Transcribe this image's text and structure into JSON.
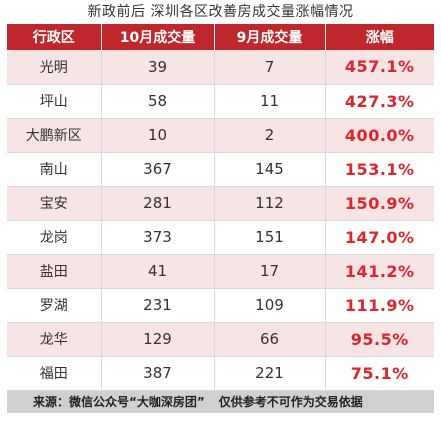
{
  "title": "新政前后 深圳各区改善房成交量涨幅情况",
  "colors": {
    "header_bg": "#c0272d",
    "alt_row_bg": "#f7e4e4",
    "pct_text": "#e0242c",
    "footer_bg": "#d0d0d0"
  },
  "table": {
    "headers": [
      "行政区",
      "10月成交量",
      "9月成交量",
      "涨幅"
    ],
    "rows": [
      {
        "district": "光明",
        "oct": "39",
        "sep": "7",
        "pct": "457.1%"
      },
      {
        "district": "坪山",
        "oct": "58",
        "sep": "11",
        "pct": "427.3%"
      },
      {
        "district": "大鹏新区",
        "oct": "10",
        "sep": "2",
        "pct": "400.0%"
      },
      {
        "district": "南山",
        "oct": "367",
        "sep": "145",
        "pct": "153.1%"
      },
      {
        "district": "宝安",
        "oct": "281",
        "sep": "112",
        "pct": "150.9%"
      },
      {
        "district": "龙岗",
        "oct": "373",
        "sep": "151",
        "pct": "147.0%"
      },
      {
        "district": "盐田",
        "oct": "41",
        "sep": "17",
        "pct": "141.2%"
      },
      {
        "district": "罗湖",
        "oct": "231",
        "sep": "109",
        "pct": "111.9%"
      },
      {
        "district": "龙华",
        "oct": "129",
        "sep": "66",
        "pct": "95.5%"
      },
      {
        "district": "福田",
        "oct": "387",
        "sep": "221",
        "pct": "75.1%"
      }
    ]
  },
  "footer": {
    "source": "来源：微信公众号“大咖深房团”",
    "disclaimer": "仅供参考不可作为交易依据"
  }
}
